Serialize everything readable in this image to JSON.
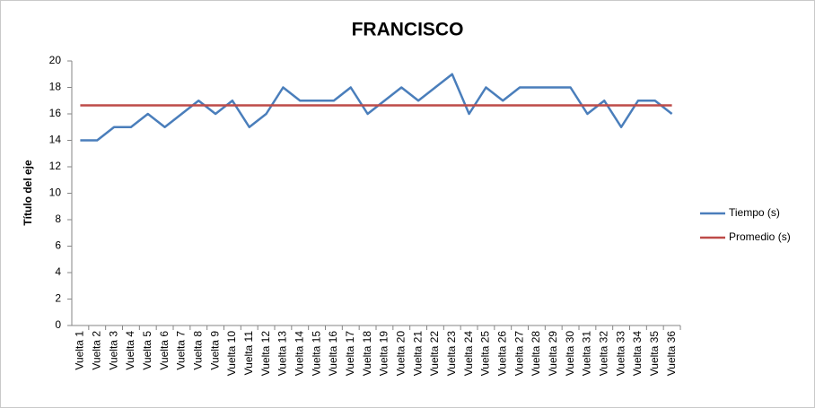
{
  "chart_data": {
    "type": "line",
    "title": "FRANCISCO",
    "y_axis_label": "Título del eje",
    "categories": [
      "Vuelta 1",
      "Vuelta 2",
      "Vuelta 3",
      "Vuelta 4",
      "Vuelta 5",
      "Vuelta 6",
      "Vuelta 7",
      "Vuelta 8",
      "Vuelta 9",
      "Vuelta 10",
      "Vuelta 11",
      "Vuelta 12",
      "Vuelta 13",
      "Vuelta 14",
      "Vuelta 15",
      "Vuelta 16",
      "Vuelta 17",
      "Vuelta 18",
      "Vuelta 19",
      "Vuelta 20",
      "Vuelta 21",
      "Vuelta 22",
      "Vuelta 23",
      "Vuelta 24",
      "Vuelta 25",
      "Vuelta 26",
      "Vuelta 27",
      "Vuelta 28",
      "Vuelta 29",
      "Vuelta 30",
      "Vuelta 31",
      "Vuelta 32",
      "Vuelta 33",
      "Vuelta 34",
      "Vuelta 35",
      "Vuelta 36"
    ],
    "series": [
      {
        "name": "Tiempo (s)",
        "color": "#4a7ebb",
        "values": [
          14,
          14,
          15,
          15,
          16,
          15,
          16,
          17,
          16,
          17,
          15,
          16,
          18,
          17,
          17,
          17,
          18,
          16,
          17,
          18,
          17,
          18,
          19,
          16,
          18,
          17,
          18,
          18,
          18,
          18,
          16,
          17,
          15,
          17,
          17,
          16
        ]
      },
      {
        "name": "Promedio (s)",
        "color": "#be4b48",
        "values": [
          16.64,
          16.64,
          16.64,
          16.64,
          16.64,
          16.64,
          16.64,
          16.64,
          16.64,
          16.64,
          16.64,
          16.64,
          16.64,
          16.64,
          16.64,
          16.64,
          16.64,
          16.64,
          16.64,
          16.64,
          16.64,
          16.64,
          16.64,
          16.64,
          16.64,
          16.64,
          16.64,
          16.64,
          16.64,
          16.64,
          16.64,
          16.64,
          16.64,
          16.64,
          16.64,
          16.64
        ]
      }
    ],
    "ylim": [
      0,
      20
    ],
    "yticks": [
      0,
      2,
      4,
      6,
      8,
      10,
      12,
      14,
      16,
      18,
      20
    ],
    "grid": false,
    "legend": "right"
  }
}
